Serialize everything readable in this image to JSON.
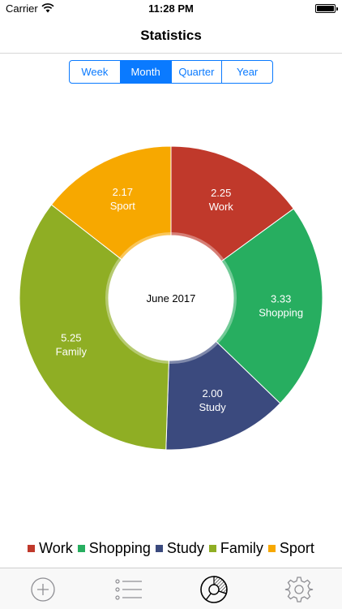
{
  "status_bar": {
    "carrier": "Carrier",
    "time": "11:28 PM",
    "wifi_icon": "wifi-icon",
    "battery_icon": "battery-icon"
  },
  "nav": {
    "title": "Statistics"
  },
  "period_control": {
    "options": [
      "Week",
      "Month",
      "Quarter",
      "Year"
    ],
    "selected": "Month"
  },
  "chart_data": {
    "type": "pie",
    "donut": true,
    "center_label": "June 2017",
    "categories": [
      "Work",
      "Shopping",
      "Study",
      "Family",
      "Sport"
    ],
    "values": [
      2.25,
      3.33,
      2.0,
      5.25,
      2.17
    ],
    "value_labels": [
      "2.25",
      "3.33",
      "2.00",
      "5.25",
      "2.17"
    ],
    "colors": [
      "#c0392b",
      "#27ae60",
      "#3b4a7e",
      "#8fae24",
      "#f7a800"
    ],
    "legend_position": "bottom"
  },
  "tab_bar": {
    "items": [
      {
        "name": "add",
        "icon": "add-circle-icon",
        "active": false
      },
      {
        "name": "list",
        "icon": "list-icon",
        "active": false
      },
      {
        "name": "statistics",
        "icon": "pie-chart-icon",
        "active": true
      },
      {
        "name": "settings",
        "icon": "gear-icon",
        "active": false
      }
    ]
  }
}
